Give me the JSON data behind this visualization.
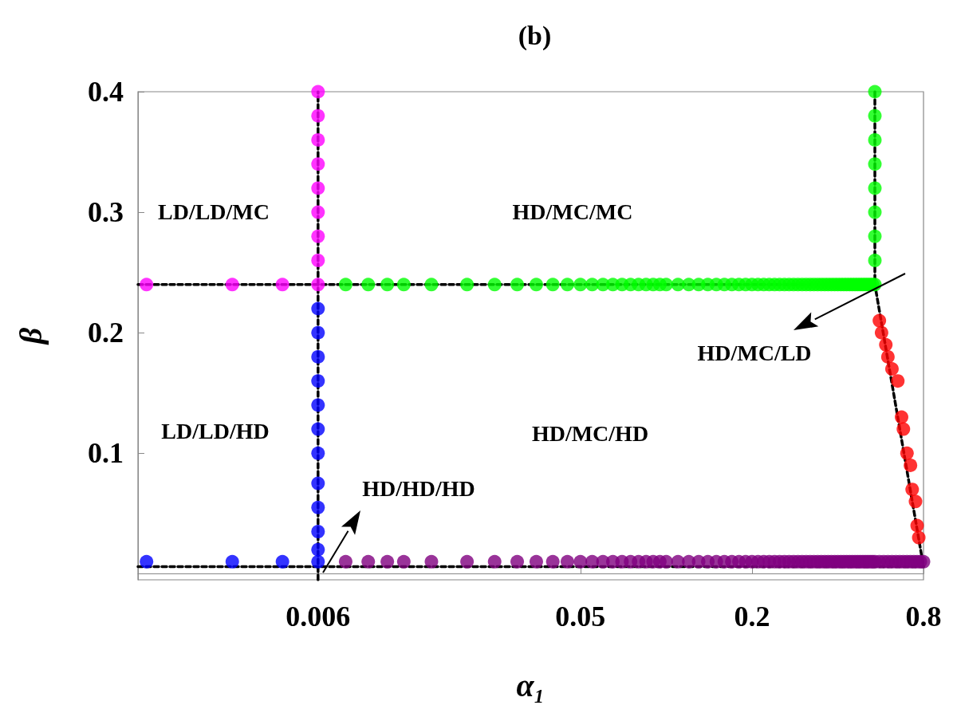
{
  "chart_data": {
    "type": "scatter",
    "title": "(b)",
    "xlabel": "α₁",
    "ylabel": "β",
    "log": "x",
    "grid": false,
    "marker": "circle",
    "xlim": [
      0.0014,
      0.8
    ],
    "xticks": [
      0.006,
      0.05,
      0.2,
      0.8
    ],
    "ylim": [
      -0.005,
      0.4
    ],
    "yticks": [
      0.1,
      0.2,
      0.3,
      0.4
    ],
    "annotations": [
      "LD/LD/MC",
      "HD/MC/MC",
      "LD/LD/HD",
      "HD/MC/HD",
      "HD/HD/HD",
      "HD/MC/LD"
    ],
    "series": [
      {
        "type": "line",
        "marker": "none",
        "line_style": "dashed",
        "color": "#000000",
        "x": [
          0.0014,
          0.54
        ],
        "values": [
          0.24,
          0.24
        ]
      },
      {
        "type": "line",
        "marker": "none",
        "line_style": "dashed",
        "color": "#000000",
        "x": [
          0.006,
          0.006
        ],
        "values": [
          -0.005,
          0.4
        ]
      },
      {
        "type": "line",
        "marker": "none",
        "line_style": "dashed",
        "color": "#000000",
        "x": [
          0.0014,
          0.8
        ],
        "values": [
          0.006,
          0.006
        ]
      },
      {
        "type": "line",
        "marker": "none",
        "line_style": "dashed",
        "color": "#000000",
        "x": [
          0.54,
          0.54,
          0.8
        ],
        "values": [
          0.4,
          0.24,
          0.006
        ]
      },
      {
        "color": "#ff00ff",
        "x": [
          0.0015,
          0.003,
          0.0045,
          0.006,
          0.006,
          0.006,
          0.006,
          0.006,
          0.006,
          0.006,
          0.006,
          0.006
        ],
        "values": [
          0.24,
          0.24,
          0.24,
          0.24,
          0.26,
          0.28,
          0.3,
          0.32,
          0.34,
          0.36,
          0.38,
          0.4
        ]
      },
      {
        "color": "#0000ff",
        "x": [
          0.0015,
          0.003,
          0.0045,
          0.006,
          0.006,
          0.006,
          0.006,
          0.006,
          0.006,
          0.006,
          0.006,
          0.006,
          0.006,
          0.006,
          0.006
        ],
        "values": [
          0.01,
          0.01,
          0.01,
          0.01,
          0.02,
          0.035,
          0.055,
          0.075,
          0.1,
          0.12,
          0.14,
          0.16,
          0.18,
          0.2,
          0.22
        ]
      },
      {
        "color": "#00ff00",
        "x": [
          0.0075,
          0.009,
          0.0105,
          0.012,
          0.015,
          0.02,
          0.025,
          0.03,
          0.035,
          0.04,
          0.045,
          0.05,
          0.055,
          0.06,
          0.065,
          0.07,
          0.075,
          0.08,
          0.085,
          0.09,
          0.095,
          0.1,
          0.11,
          0.12,
          0.13,
          0.14,
          0.15,
          0.16,
          0.17,
          0.18,
          0.19,
          0.2,
          0.21,
          0.22,
          0.23,
          0.24,
          0.25,
          0.26,
          0.27,
          0.28,
          0.29,
          0.3,
          0.31,
          0.32,
          0.33,
          0.34,
          0.35,
          0.36,
          0.37,
          0.38,
          0.39,
          0.4,
          0.41,
          0.42,
          0.43,
          0.44,
          0.45,
          0.46,
          0.47,
          0.48,
          0.49,
          0.5,
          0.51,
          0.52,
          0.53,
          0.54,
          0.54,
          0.54,
          0.54,
          0.54,
          0.54,
          0.54,
          0.54,
          0.54
        ],
        "values": [
          0.24,
          0.24,
          0.24,
          0.24,
          0.24,
          0.24,
          0.24,
          0.24,
          0.24,
          0.24,
          0.24,
          0.24,
          0.24,
          0.24,
          0.24,
          0.24,
          0.24,
          0.24,
          0.24,
          0.24,
          0.24,
          0.24,
          0.24,
          0.24,
          0.24,
          0.24,
          0.24,
          0.24,
          0.24,
          0.24,
          0.24,
          0.24,
          0.24,
          0.24,
          0.24,
          0.24,
          0.24,
          0.24,
          0.24,
          0.24,
          0.24,
          0.24,
          0.24,
          0.24,
          0.24,
          0.24,
          0.24,
          0.24,
          0.24,
          0.24,
          0.24,
          0.24,
          0.24,
          0.24,
          0.24,
          0.24,
          0.24,
          0.24,
          0.24,
          0.24,
          0.24,
          0.24,
          0.24,
          0.24,
          0.24,
          0.24,
          0.26,
          0.28,
          0.3,
          0.32,
          0.34,
          0.36,
          0.38,
          0.4
        ]
      },
      {
        "color": "#ff0000",
        "x": [
          0.56,
          0.57,
          0.59,
          0.6,
          0.62,
          0.65,
          0.67,
          0.68,
          0.7,
          0.72,
          0.73,
          0.75,
          0.76,
          0.77
        ],
        "values": [
          0.21,
          0.2,
          0.19,
          0.18,
          0.17,
          0.16,
          0.13,
          0.12,
          0.1,
          0.09,
          0.07,
          0.06,
          0.04,
          0.03
        ]
      },
      {
        "color": "#800080",
        "x": [
          0.0075,
          0.009,
          0.0105,
          0.012,
          0.015,
          0.02,
          0.025,
          0.03,
          0.035,
          0.04,
          0.045,
          0.05,
          0.055,
          0.06,
          0.065,
          0.07,
          0.075,
          0.08,
          0.085,
          0.09,
          0.095,
          0.1,
          0.11,
          0.12,
          0.13,
          0.14,
          0.15,
          0.16,
          0.17,
          0.18,
          0.19,
          0.2,
          0.21,
          0.22,
          0.23,
          0.24,
          0.25,
          0.26,
          0.27,
          0.28,
          0.29,
          0.3,
          0.31,
          0.32,
          0.33,
          0.34,
          0.35,
          0.36,
          0.37,
          0.38,
          0.39,
          0.4,
          0.41,
          0.42,
          0.43,
          0.44,
          0.45,
          0.46,
          0.47,
          0.48,
          0.49,
          0.5,
          0.51,
          0.52,
          0.53,
          0.54,
          0.56,
          0.58,
          0.6,
          0.62,
          0.64,
          0.66,
          0.68,
          0.7,
          0.72,
          0.74,
          0.76,
          0.78,
          0.8
        ],
        "values": [
          0.01,
          0.01,
          0.01,
          0.01,
          0.01,
          0.01,
          0.01,
          0.01,
          0.01,
          0.01,
          0.01,
          0.01,
          0.01,
          0.01,
          0.01,
          0.01,
          0.01,
          0.01,
          0.01,
          0.01,
          0.01,
          0.01,
          0.01,
          0.01,
          0.01,
          0.01,
          0.01,
          0.01,
          0.01,
          0.01,
          0.01,
          0.01,
          0.01,
          0.01,
          0.01,
          0.01,
          0.01,
          0.01,
          0.01,
          0.01,
          0.01,
          0.01,
          0.01,
          0.01,
          0.01,
          0.01,
          0.01,
          0.01,
          0.01,
          0.01,
          0.01,
          0.01,
          0.01,
          0.01,
          0.01,
          0.01,
          0.01,
          0.01,
          0.01,
          0.01,
          0.01,
          0.01,
          0.01,
          0.01,
          0.01,
          0.01,
          0.01,
          0.01,
          0.01,
          0.01,
          0.01,
          0.01,
          0.01,
          0.01,
          0.01,
          0.01,
          0.01,
          0.01,
          0.01
        ]
      }
    ]
  }
}
